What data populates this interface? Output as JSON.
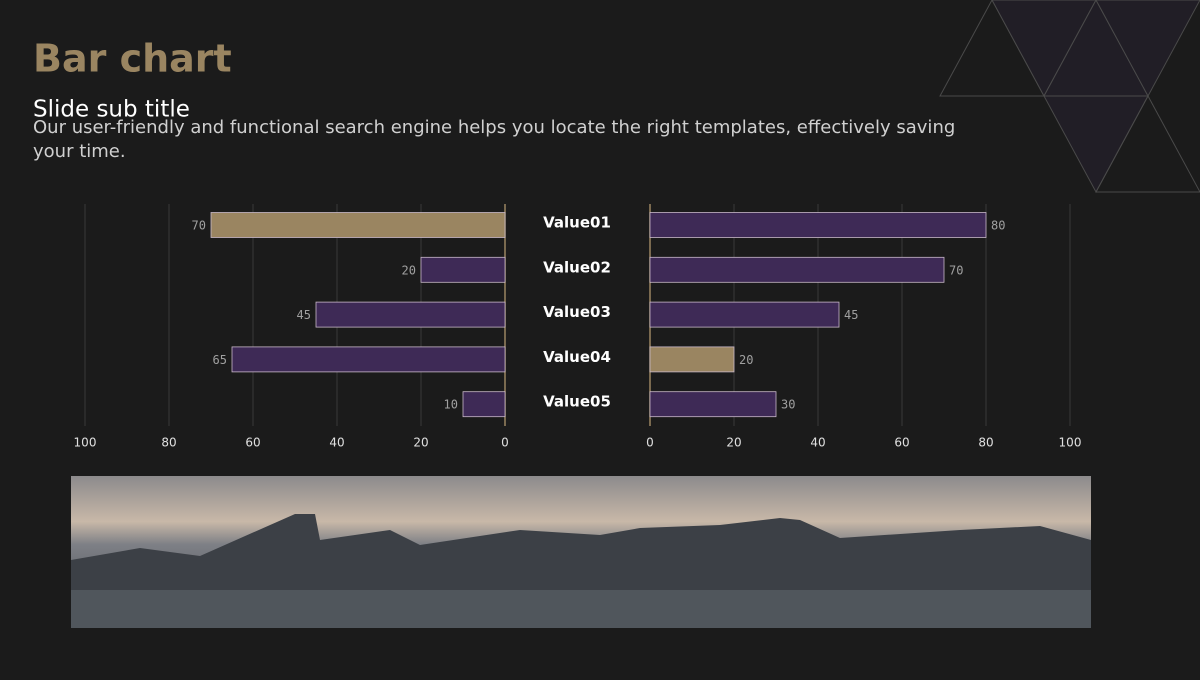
{
  "chart_data": {
    "type": "butterfly",
    "title": "Bar chart",
    "subtitle": "Slide sub title",
    "description": "Our user-friendly and functional search engine helps you locate the right templates, effectively saving your time.",
    "categories": [
      "Value01",
      "Value02",
      "Value03",
      "Value04",
      "Value05"
    ],
    "series": [
      {
        "values": [
          70,
          20,
          45,
          65,
          10
        ],
        "colors": [
          "#9a8561",
          "#3e2a56",
          "#3e2a56",
          "#3e2a56",
          "#3e2a56"
        ]
      },
      {
        "values": [
          80,
          70,
          45,
          20,
          30
        ],
        "colors": [
          "#3e2a56",
          "#3e2a56",
          "#3e2a56",
          "#9a8561",
          "#3e2a56"
        ]
      }
    ],
    "xlim": [
      0,
      100
    ],
    "xticks": [
      0,
      20,
      40,
      60,
      80,
      100
    ],
    "grid": true
  }
}
